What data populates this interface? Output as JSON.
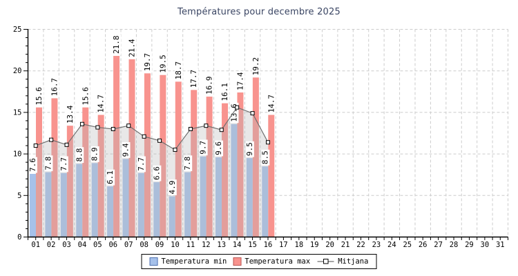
{
  "title": "Températures pour decembre 2025",
  "legend": {
    "min_label": "Temperatura min",
    "max_label": "Temperatura max",
    "mean_label": "Mitjana"
  },
  "colors": {
    "title_text": "#3a4563",
    "min_bar": "#a6c1ea",
    "min_border": "#4d6faf",
    "max_bar": "#f8938e",
    "max_border": "#bb5653",
    "mean_line": "#6f6f6f",
    "marker_fill": "#ffffff",
    "marker_border": "#000000",
    "grid": "#cccccc",
    "axis": "#000000",
    "area_fill": "rgba(185,185,185,0.32)"
  },
  "chart_data": {
    "type": "bar",
    "title": "Températures pour decembre 2025",
    "xlabel": "",
    "ylabel": "",
    "ylim": [
      0,
      25
    ],
    "yticks": [
      0,
      5,
      10,
      15,
      20,
      25
    ],
    "grid": true,
    "legend_position": "bottom",
    "categories": [
      "01",
      "02",
      "03",
      "04",
      "05",
      "06",
      "07",
      "08",
      "09",
      "10",
      "11",
      "12",
      "13",
      "14",
      "15",
      "16",
      "17",
      "18",
      "19",
      "20",
      "21",
      "22",
      "23",
      "24",
      "25",
      "26",
      "27",
      "28",
      "29",
      "30",
      "31"
    ],
    "days_with_data": 16,
    "series": [
      {
        "name": "Temperatura min",
        "type": "bar",
        "color": "#a6c1ea",
        "values": [
          7.6,
          7.8,
          7.7,
          8.8,
          8.9,
          6.1,
          9.4,
          7.7,
          6.6,
          4.9,
          7.8,
          9.7,
          9.6,
          13.6,
          9.5,
          8.5
        ]
      },
      {
        "name": "Temperatura max",
        "type": "bar",
        "color": "#f8938e",
        "values": [
          15.6,
          16.7,
          13.4,
          15.6,
          14.7,
          21.8,
          21.4,
          19.7,
          19.5,
          18.7,
          17.7,
          16.9,
          16.1,
          17.4,
          19.2,
          14.7
        ]
      },
      {
        "name": "Mitjana",
        "type": "line",
        "color": "#6f6f6f",
        "values": [
          11.0,
          11.7,
          11.1,
          13.6,
          13.2,
          13.0,
          13.4,
          12.1,
          11.6,
          10.5,
          13.0,
          13.4,
          12.9,
          15.6,
          14.9,
          11.4
        ]
      }
    ]
  }
}
